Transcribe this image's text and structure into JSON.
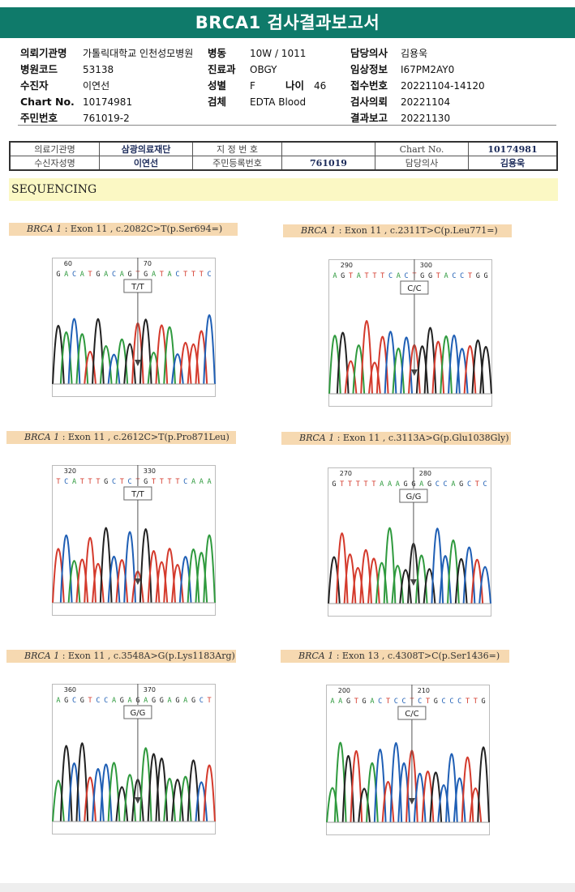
{
  "title": "BRCA1 검사결과보고서",
  "patient_info": {
    "col1": [
      {
        "k": "의뢰기관명",
        "v": "가톨릭대학교 인천성모병원"
      },
      {
        "k": "병원코드",
        "v": "53138"
      },
      {
        "k": "수진자",
        "v": "이연선"
      },
      {
        "k": "Chart No.",
        "v": "10174981"
      },
      {
        "k": "주민번호",
        "v": "761019-2"
      }
    ],
    "col2": [
      {
        "k": "병동",
        "v": "10W / 1011"
      },
      {
        "k": "진료과",
        "v": "OBGY"
      },
      {
        "k": "성별",
        "v": "F"
      },
      {
        "k": "검체",
        "v": "EDTA Blood"
      }
    ],
    "age": {
      "k": "나이",
      "v": "46"
    },
    "col3": [
      {
        "k": "담당의사",
        "v": "김용욱"
      },
      {
        "k": "임상정보",
        "v": "I67PM2AY0"
      },
      {
        "k": "접수번호",
        "v": "20221104-14120"
      },
      {
        "k": "검사의뢰",
        "v": "20221104"
      },
      {
        "k": "결과보고",
        "v": "20221130"
      }
    ]
  },
  "ref_table": {
    "r1": [
      "의료기관명",
      "삼광의료재단",
      "지 정 번 호",
      "",
      "Chart No.",
      "10174981"
    ],
    "r2": [
      "수신자성명",
      "이연선",
      "주민등록번호",
      "761019",
      "담당의사",
      "김용욱"
    ]
  },
  "section": "SEQUENCING",
  "colors": {
    "banner": "#0f7a6a",
    "A": "#2f9a3e",
    "C": "#1f5fb5",
    "G": "#222222",
    "T": "#d43a2c"
  },
  "variants": [
    {
      "gene": "BRCA 1",
      "desc": " : Exon 11 , c.2082C>T(p.Ser694=)",
      "genotype": "T/T",
      "pos1": "60",
      "pos2": "70",
      "seq": "GACATGACAGTGATACTTTC"
    },
    {
      "gene": "BRCA 1",
      "desc": " : Exon 11 , c.2311T>C(p.Leu771=)",
      "genotype": "C/C",
      "pos1": "290",
      "pos2": "300",
      "seq": "AGTATTTCACTGGTACCTGG"
    },
    {
      "gene": "BRCA 1",
      "desc": " : Exon 11 , c.2612C>T(p.Pro871Leu)",
      "genotype": "T/T",
      "pos1": "320",
      "pos2": "330",
      "seq": "TCATTTGCTCTGTTTTCAAA"
    },
    {
      "gene": "BRCA 1",
      "desc": " : Exon 11 , c.3113A>G(p.Glu1038Gly)",
      "genotype": "G/G",
      "pos1": "270",
      "pos2": "280",
      "seq": "GTTTTTAAAGGAGCCAGCTC"
    },
    {
      "gene": "BRCA 1",
      "desc": " : Exon 11 , c.3548A>G(p.Lys1183Arg)",
      "genotype": "G/G",
      "pos1": "360",
      "pos2": "370",
      "seq": "AGCGTCCAGAGAGGAGAGCT"
    },
    {
      "gene": "BRCA 1",
      "desc": " : Exon 13 , c.4308T>C(p.Ser1436=)",
      "genotype": "C/C",
      "pos1": "200",
      "pos2": "210",
      "seq": "AAGTGACTCCTCTGCCCTTG"
    }
  ]
}
